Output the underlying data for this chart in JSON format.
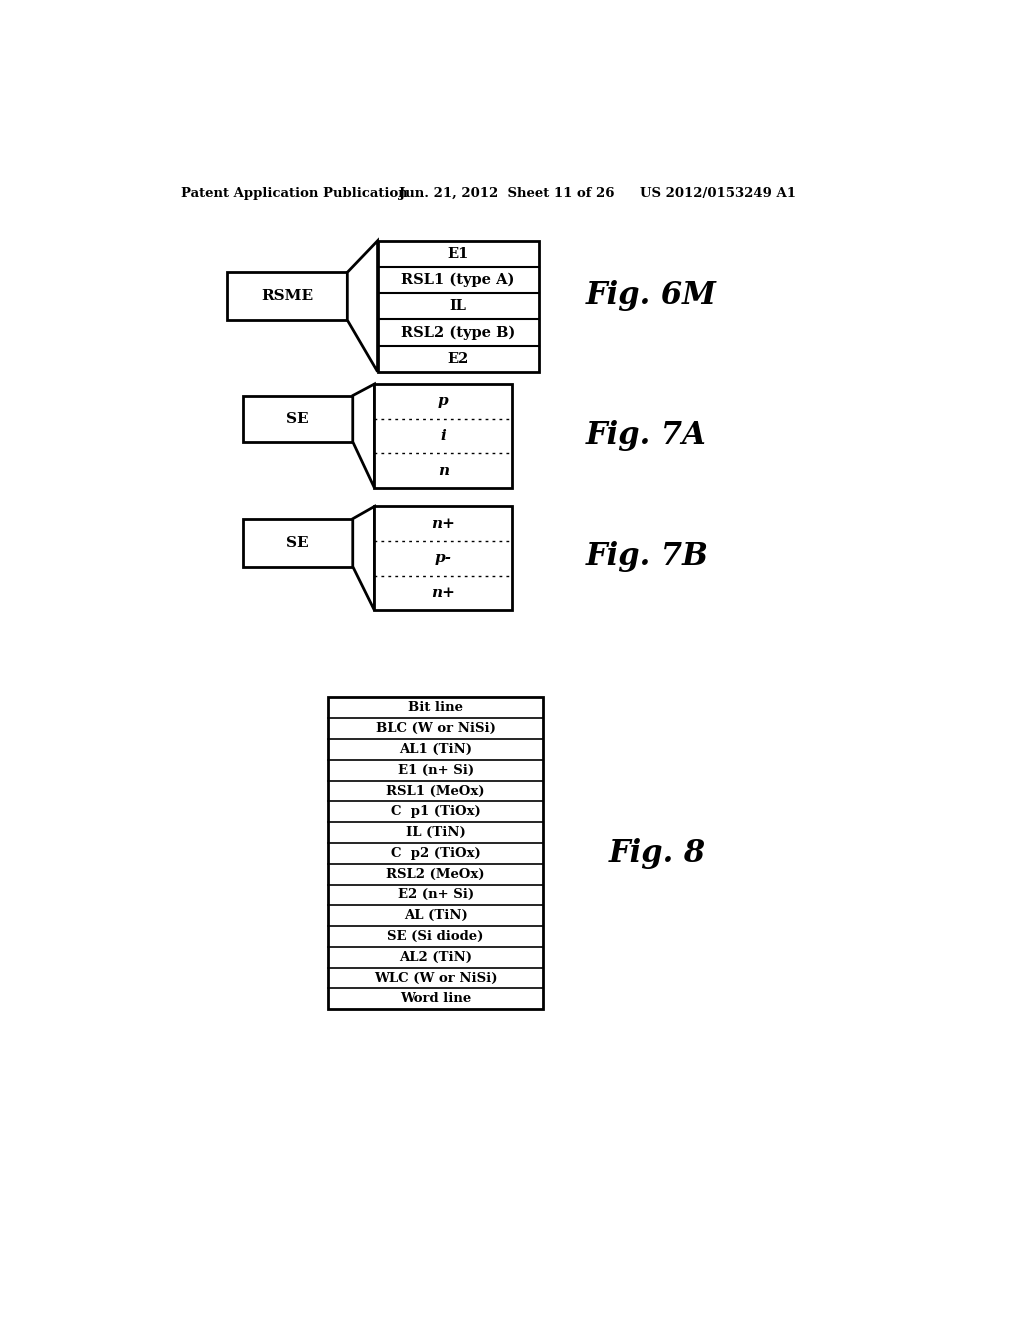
{
  "bg_color": "#ffffff",
  "header_left": "Patent Application Publication",
  "header_mid": "Jun. 21, 2012  Sheet 11 of 26",
  "header_right": "US 2012/0153249 A1",
  "fig6m_label": "Fig. 6M",
  "fig6m_left_label": "RSME",
  "fig6m_layers": [
    "E1",
    "RSL1 (type A)",
    "IL",
    "RSL2 (type B)",
    "E2"
  ],
  "fig7a_label": "Fig. 7A",
  "fig7a_left_label": "SE",
  "fig7a_layers": [
    "p",
    "i",
    "n"
  ],
  "fig7b_label": "Fig. 7B",
  "fig7b_left_label": "SE",
  "fig7b_layers": [
    "n+",
    "p-",
    "n+"
  ],
  "fig8_label": "Fig. 8",
  "fig8_layers": [
    "Bit line",
    "BLC (W or NiSi)",
    "AL1 (TiN)",
    "E1 (n+ Si)",
    "RSL1 (MeOx)",
    "C  p1 (TiOx)",
    "IL (TiN)",
    "C  p2 (TiOx)",
    "RSL2 (MeOx)",
    "E2 (n+ Si)",
    "AL (TiN)",
    "SE (Si diode)",
    "AL2 (TiN)",
    "WLC (W or NiSi)",
    "Word line"
  ]
}
